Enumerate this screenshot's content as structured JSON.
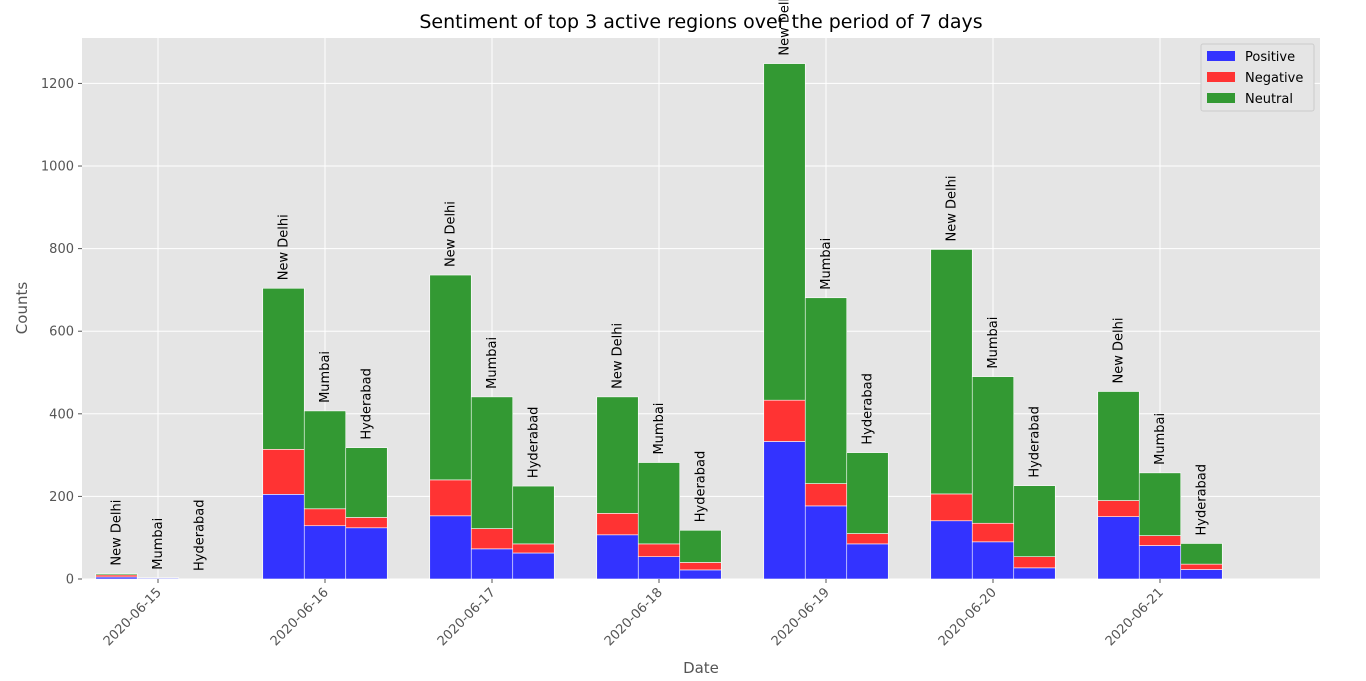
{
  "chart_data": {
    "type": "bar",
    "stacked": true,
    "title": "Sentiment of top 3 active regions over the period of 7 days",
    "xlabel": "Date",
    "ylabel": "Counts",
    "ylim": [
      0,
      1310
    ],
    "yticks": [
      0,
      200,
      400,
      600,
      800,
      1000,
      1200
    ],
    "grid": true,
    "legend_position": "top-right",
    "categories": [
      "2020-06-15",
      "2020-06-16",
      "2020-06-17",
      "2020-06-18",
      "2020-06-19",
      "2020-06-20",
      "2020-06-21"
    ],
    "regions": [
      "New Delhi",
      "Mumbai",
      "Hyderabad"
    ],
    "series": [
      {
        "name": "Positive",
        "color": "#3333ff",
        "values": {
          "New Delhi": [
            5,
            205,
            153,
            107,
            333,
            141,
            151
          ],
          "Mumbai": [
            2,
            129,
            73,
            54,
            177,
            90,
            81
          ],
          "Hyderabad": [
            0,
            124,
            63,
            22,
            85,
            27,
            23
          ]
        }
      },
      {
        "name": "Negative",
        "color": "#ff3333",
        "values": {
          "New Delhi": [
            5,
            109,
            87,
            52,
            100,
            65,
            39
          ],
          "Mumbai": [
            0,
            41,
            49,
            31,
            54,
            45,
            24
          ],
          "Hyderabad": [
            0,
            25,
            22,
            18,
            25,
            27,
            13
          ]
        }
      },
      {
        "name": "Neutral",
        "color": "#339933",
        "values": {
          "New Delhi": [
            3,
            390,
            496,
            282,
            815,
            592,
            264
          ],
          "Mumbai": [
            1,
            237,
            319,
            197,
            450,
            355,
            152
          ],
          "Hyderabad": [
            0,
            169,
            140,
            78,
            196,
            172,
            50
          ]
        }
      }
    ],
    "bar_label_values": {
      "New Delhi": [
        13,
        704,
        736,
        441,
        1248,
        798,
        454
      ],
      "Mumbai": [
        3,
        407,
        441,
        282,
        681,
        490,
        257
      ],
      "Hyderabad": [
        0,
        318,
        225,
        118,
        306,
        226,
        86
      ]
    }
  }
}
